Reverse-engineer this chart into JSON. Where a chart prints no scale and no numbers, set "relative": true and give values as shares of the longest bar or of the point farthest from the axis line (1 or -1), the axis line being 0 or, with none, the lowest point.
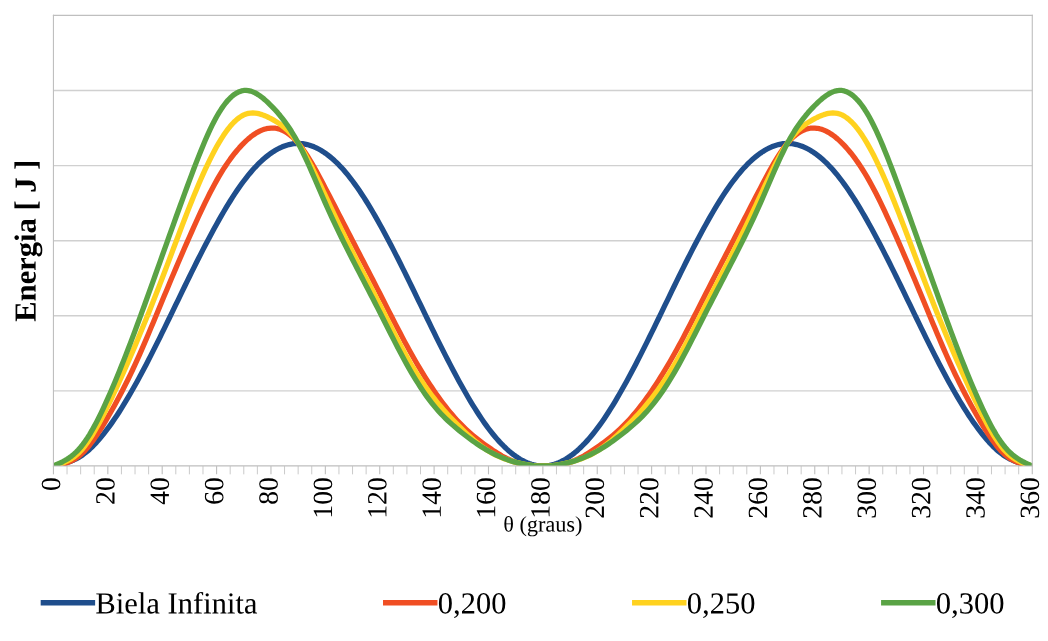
{
  "chart_data": {
    "type": "line",
    "xlabel": "θ (graus)",
    "ylabel": "Energia [ J ]",
    "relative": true,
    "x": [
      0,
      10,
      20,
      30,
      40,
      50,
      60,
      70,
      80,
      90,
      100,
      110,
      120,
      130,
      140,
      150,
      160,
      170,
      180,
      190,
      200,
      210,
      220,
      230,
      240,
      250,
      260,
      270,
      280,
      290,
      300,
      310,
      320,
      330,
      340,
      350,
      360
    ],
    "xlim": [
      0,
      360
    ],
    "xticks": [
      0,
      20,
      40,
      60,
      80,
      100,
      120,
      140,
      160,
      180,
      200,
      220,
      240,
      260,
      280,
      300,
      320,
      340,
      360
    ],
    "grid": "y",
    "legend": "bottom",
    "marker": "none",
    "line_style": "solid",
    "series": [
      {
        "name": "Biela Infinita",
        "color": "#1f4e8c",
        "values": [
          0,
          0.026,
          0.1,
          0.215,
          0.355,
          0.504,
          0.644,
          0.759,
          0.833,
          0.859,
          0.833,
          0.759,
          0.644,
          0.504,
          0.355,
          0.215,
          0.1,
          0.026,
          0,
          0.026,
          0.1,
          0.215,
          0.355,
          0.504,
          0.644,
          0.759,
          0.833,
          0.859,
          0.833,
          0.759,
          0.644,
          0.504,
          0.355,
          0.215,
          0.1,
          0.026,
          0
        ]
      },
      {
        "name": "0,200",
        "color": "#f04e23",
        "values": [
          0,
          0.03,
          0.13,
          0.27,
          0.44,
          0.61,
          0.76,
          0.86,
          0.9,
          0.86,
          0.74,
          0.6,
          0.46,
          0.32,
          0.2,
          0.11,
          0.05,
          0.01,
          0,
          0.01,
          0.05,
          0.11,
          0.2,
          0.32,
          0.46,
          0.6,
          0.74,
          0.86,
          0.9,
          0.86,
          0.76,
          0.61,
          0.44,
          0.27,
          0.13,
          0.03,
          0
        ]
      },
      {
        "name": "0,250",
        "color": "#ffd21f",
        "values": [
          0,
          0.04,
          0.16,
          0.32,
          0.5,
          0.69,
          0.85,
          0.935,
          0.925,
          0.86,
          0.72,
          0.57,
          0.43,
          0.29,
          0.18,
          0.1,
          0.04,
          0.01,
          0,
          0.01,
          0.04,
          0.1,
          0.18,
          0.29,
          0.43,
          0.57,
          0.72,
          0.86,
          0.925,
          0.935,
          0.85,
          0.69,
          0.5,
          0.32,
          0.16,
          0.04,
          0
        ]
      },
      {
        "name": "0,300",
        "color": "#5aa345",
        "values": [
          0,
          0.05,
          0.18,
          0.36,
          0.56,
          0.76,
          0.93,
          1.0,
          0.96,
          0.86,
          0.7,
          0.55,
          0.41,
          0.27,
          0.16,
          0.09,
          0.04,
          0.01,
          0,
          0.01,
          0.04,
          0.09,
          0.16,
          0.27,
          0.41,
          0.55,
          0.7,
          0.86,
          0.96,
          1.0,
          0.93,
          0.76,
          0.56,
          0.36,
          0.18,
          0.05,
          0
        ]
      }
    ]
  }
}
